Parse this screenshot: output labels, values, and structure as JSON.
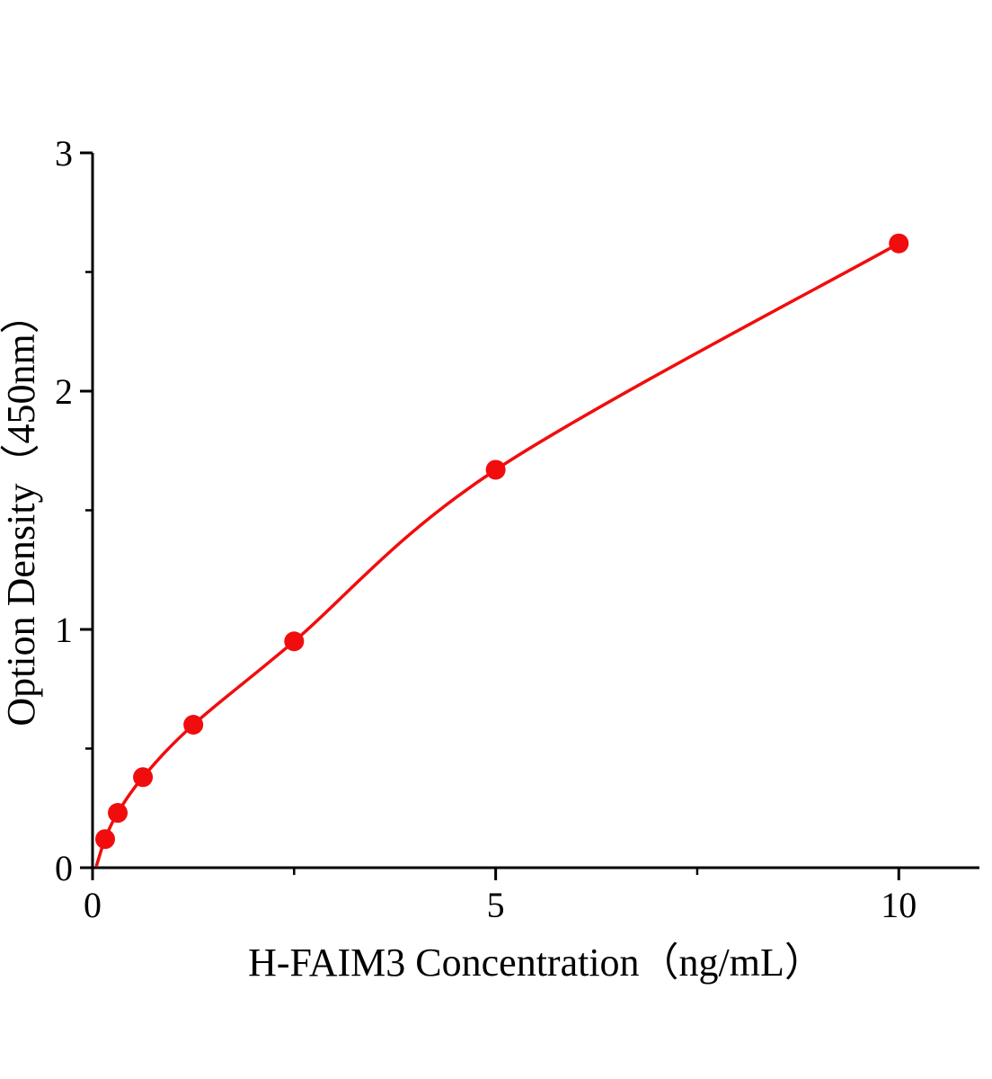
{
  "chart_data": {
    "type": "scatter",
    "xlabel": "H-FAIM3 Concentration（ng/mL）",
    "ylabel": "Option Density（450nm）",
    "x": [
      0.156,
      0.3125,
      0.625,
      1.25,
      2.5,
      5,
      10
    ],
    "y": [
      0.12,
      0.23,
      0.38,
      0.6,
      0.95,
      1.67,
      2.62
    ],
    "xlim": [
      0,
      11
    ],
    "ylim": [
      0,
      3
    ],
    "x_major_ticks": [
      0,
      5,
      10
    ],
    "x_minor_ticks": [
      2.5,
      7.5
    ],
    "y_major_ticks": [
      0,
      1,
      2,
      3
    ],
    "y_minor_ticks": [
      0.5,
      1.5,
      2.5
    ],
    "grid": false,
    "legend": false,
    "marker_color": "#f10d0d",
    "line_color": "#f10d0d",
    "axis_color": "#000000",
    "fit_curve_points": [
      [
        0.05,
        0.01
      ],
      [
        0.156,
        0.12
      ],
      [
        0.3125,
        0.23
      ],
      [
        0.625,
        0.38
      ],
      [
        1.25,
        0.6
      ],
      [
        2.5,
        0.95
      ],
      [
        5,
        1.67
      ],
      [
        10,
        2.62
      ]
    ]
  }
}
